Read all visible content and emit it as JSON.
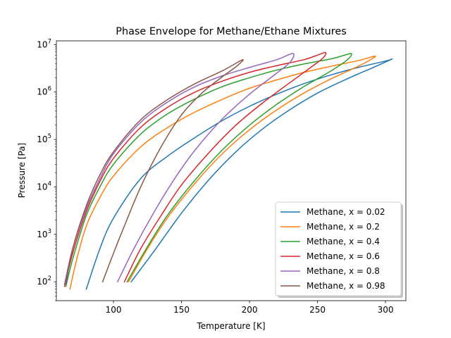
{
  "chart_data": {
    "type": "line",
    "title": "Phase Envelope for Methane/Ethane Mixtures",
    "xlabel": "Temperature [K]",
    "ylabel": "Pressure [Pa]",
    "xlim": [
      58,
      315
    ],
    "ylim": [
      40,
      12000000
    ],
    "yscale": "log",
    "grid": false,
    "legend_position": "bottom-right",
    "x_ticks": [
      100,
      150,
      200,
      250,
      300
    ],
    "x_tick_labels": [
      "100",
      "150",
      "200",
      "250",
      "300"
    ],
    "y_ticks": [
      100,
      1000,
      10000,
      100000,
      1000000,
      10000000
    ],
    "y_tick_labels": [
      "10^2",
      "10^3",
      "10^4",
      "10^5",
      "10^6",
      "10^7"
    ],
    "series": [
      {
        "name": "Methane, x = 0.02",
        "color": "#1f77b4",
        "bubble": [
          [
            80,
            70
          ],
          [
            90,
            500
          ],
          [
            100,
            2200
          ],
          [
            120,
            15000
          ],
          [
            140,
            45000
          ],
          [
            160,
            110000
          ],
          [
            180,
            250000
          ],
          [
            200,
            500000
          ],
          [
            220,
            900000
          ],
          [
            240,
            1500000
          ],
          [
            260,
            2300000
          ],
          [
            280,
            3300000
          ],
          [
            300,
            4500000
          ],
          [
            305,
            5000000
          ]
        ],
        "dew": [
          [
            305,
            5000000
          ],
          [
            300,
            4300000
          ],
          [
            290,
            3200000
          ],
          [
            270,
            1800000
          ],
          [
            250,
            950000
          ],
          [
            230,
            430000
          ],
          [
            210,
            170000
          ],
          [
            190,
            55000
          ],
          [
            170,
            14000
          ],
          [
            150,
            2800
          ],
          [
            130,
            450
          ],
          [
            113,
            100
          ]
        ]
      },
      {
        "name": "Methane, x = 0.2",
        "color": "#ff7f0e",
        "bubble": [
          [
            68,
            70
          ],
          [
            73,
            300
          ],
          [
            80,
            1500
          ],
          [
            90,
            6000
          ],
          [
            100,
            17000
          ],
          [
            120,
            70000
          ],
          [
            140,
            180000
          ],
          [
            160,
            380000
          ],
          [
            180,
            700000
          ],
          [
            200,
            1200000
          ],
          [
            220,
            1800000
          ],
          [
            240,
            2600000
          ],
          [
            260,
            3500000
          ],
          [
            280,
            4600000
          ],
          [
            292,
            5700000
          ]
        ],
        "dew": [
          [
            292,
            5700000
          ],
          [
            290,
            5000000
          ],
          [
            280,
            3500000
          ],
          [
            260,
            1900000
          ],
          [
            240,
            950000
          ],
          [
            220,
            420000
          ],
          [
            200,
            160000
          ],
          [
            180,
            50000
          ],
          [
            160,
            12000
          ],
          [
            140,
            2300
          ],
          [
            125,
            500
          ],
          [
            111,
            100
          ]
        ]
      },
      {
        "name": "Methane, x = 0.4",
        "color": "#2ca02c",
        "bubble": [
          [
            65,
            80
          ],
          [
            70,
            300
          ],
          [
            80,
            2500
          ],
          [
            90,
            10000
          ],
          [
            100,
            30000
          ],
          [
            120,
            130000
          ],
          [
            140,
            350000
          ],
          [
            160,
            720000
          ],
          [
            180,
            1300000
          ],
          [
            200,
            2000000
          ],
          [
            220,
            2900000
          ],
          [
            240,
            3900000
          ],
          [
            260,
            5000000
          ],
          [
            270,
            6000000
          ],
          [
            275,
            6400000
          ]
        ],
        "dew": [
          [
            275,
            6400000
          ],
          [
            272,
            4800000
          ],
          [
            260,
            2800000
          ],
          [
            240,
            1300000
          ],
          [
            220,
            550000
          ],
          [
            200,
            200000
          ],
          [
            180,
            60000
          ],
          [
            160,
            14000
          ],
          [
            140,
            2600
          ],
          [
            125,
            550
          ],
          [
            110,
            100
          ]
        ]
      },
      {
        "name": "Methane, x = 0.6",
        "color": "#d62728",
        "bubble": [
          [
            64,
            80
          ],
          [
            70,
            400
          ],
          [
            80,
            3000
          ],
          [
            90,
            13000
          ],
          [
            100,
            40000
          ],
          [
            120,
            180000
          ],
          [
            140,
            480000
          ],
          [
            160,
            1000000
          ],
          [
            180,
            1700000
          ],
          [
            200,
            2600000
          ],
          [
            220,
            3600000
          ],
          [
            240,
            4800000
          ],
          [
            250,
            6000000
          ],
          [
            256,
            6800000
          ]
        ],
        "dew": [
          [
            256,
            6800000
          ],
          [
            254,
            5200000
          ],
          [
            245,
            3300000
          ],
          [
            230,
            1600000
          ],
          [
            210,
            600000
          ],
          [
            190,
            200000
          ],
          [
            170,
            52000
          ],
          [
            150,
            11000
          ],
          [
            135,
            2500
          ],
          [
            120,
            500
          ],
          [
            108,
            100
          ]
        ]
      },
      {
        "name": "Methane, x = 0.8",
        "color": "#9467bd",
        "bubble": [
          [
            64,
            90
          ],
          [
            70,
            500
          ],
          [
            80,
            3500
          ],
          [
            90,
            15000
          ],
          [
            100,
            50000
          ],
          [
            120,
            230000
          ],
          [
            140,
            620000
          ],
          [
            160,
            1300000
          ],
          [
            180,
            2200000
          ],
          [
            200,
            3300000
          ],
          [
            220,
            4800000
          ],
          [
            232,
            6500000
          ]
        ],
        "dew": [
          [
            232,
            6500000
          ],
          [
            230,
            4300000
          ],
          [
            220,
            2500000
          ],
          [
            200,
            900000
          ],
          [
            180,
            270000
          ],
          [
            160,
            60000
          ],
          [
            145,
            15000
          ],
          [
            130,
            3000
          ],
          [
            115,
            500
          ],
          [
            103,
            100
          ]
        ]
      },
      {
        "name": "Methane, x = 0.98",
        "color": "#8c564b",
        "bubble": [
          [
            65,
            90
          ],
          [
            70,
            500
          ],
          [
            80,
            4000
          ],
          [
            90,
            18000
          ],
          [
            100,
            55000
          ],
          [
            120,
            260000
          ],
          [
            140,
            700000
          ],
          [
            160,
            1500000
          ],
          [
            180,
            2800000
          ],
          [
            195,
            4800000
          ]
        ],
        "dew": [
          [
            195,
            4800000
          ],
          [
            190,
            3400000
          ],
          [
            180,
            2100000
          ],
          [
            165,
            950000
          ],
          [
            150,
            330000
          ],
          [
            135,
            70000
          ],
          [
            120,
            10000
          ],
          [
            108,
            1500
          ],
          [
            100,
            400
          ],
          [
            92,
            100
          ]
        ]
      }
    ]
  }
}
